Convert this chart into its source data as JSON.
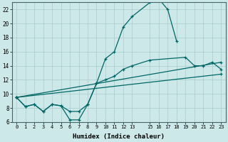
{
  "xlabel": "Humidex (Indice chaleur)",
  "bg_color": "#cce8e8",
  "line_color": "#006666",
  "grid_color": "#aacccc",
  "xlim": [
    -0.5,
    23.5
  ],
  "ylim": [
    6,
    23
  ],
  "xticks": [
    0,
    1,
    2,
    3,
    4,
    5,
    6,
    7,
    8,
    9,
    10,
    11,
    12,
    13,
    15,
    16,
    17,
    18,
    19,
    20,
    21,
    22,
    23
  ],
  "yticks": [
    6,
    8,
    10,
    12,
    14,
    16,
    18,
    20,
    22
  ],
  "line1_x": [
    0,
    1,
    2,
    3,
    4,
    5,
    6,
    7,
    8,
    9,
    10,
    11,
    12,
    13,
    15,
    16,
    17,
    18
  ],
  "line1_y": [
    9.5,
    8.2,
    8.5,
    7.5,
    8.5,
    8.3,
    6.3,
    6.3,
    8.5,
    11.5,
    15.0,
    16.0,
    19.5,
    21.0,
    23.0,
    23.5,
    22.0,
    17.5
  ],
  "line2_x": [
    0,
    1,
    2,
    3,
    4,
    5,
    6,
    7,
    8,
    9,
    10,
    11,
    12,
    13,
    15,
    19,
    20,
    21,
    22,
    23
  ],
  "line2_y": [
    9.5,
    8.2,
    8.5,
    7.5,
    8.5,
    8.3,
    7.5,
    7.5,
    8.5,
    11.5,
    12.0,
    12.5,
    13.5,
    14.0,
    14.8,
    15.2,
    14.0,
    14.0,
    14.5,
    13.5
  ],
  "line3_x": [
    0,
    23
  ],
  "line3_y": [
    9.5,
    14.5
  ],
  "line4_x": [
    0,
    23
  ],
  "line4_y": [
    9.5,
    12.8
  ]
}
